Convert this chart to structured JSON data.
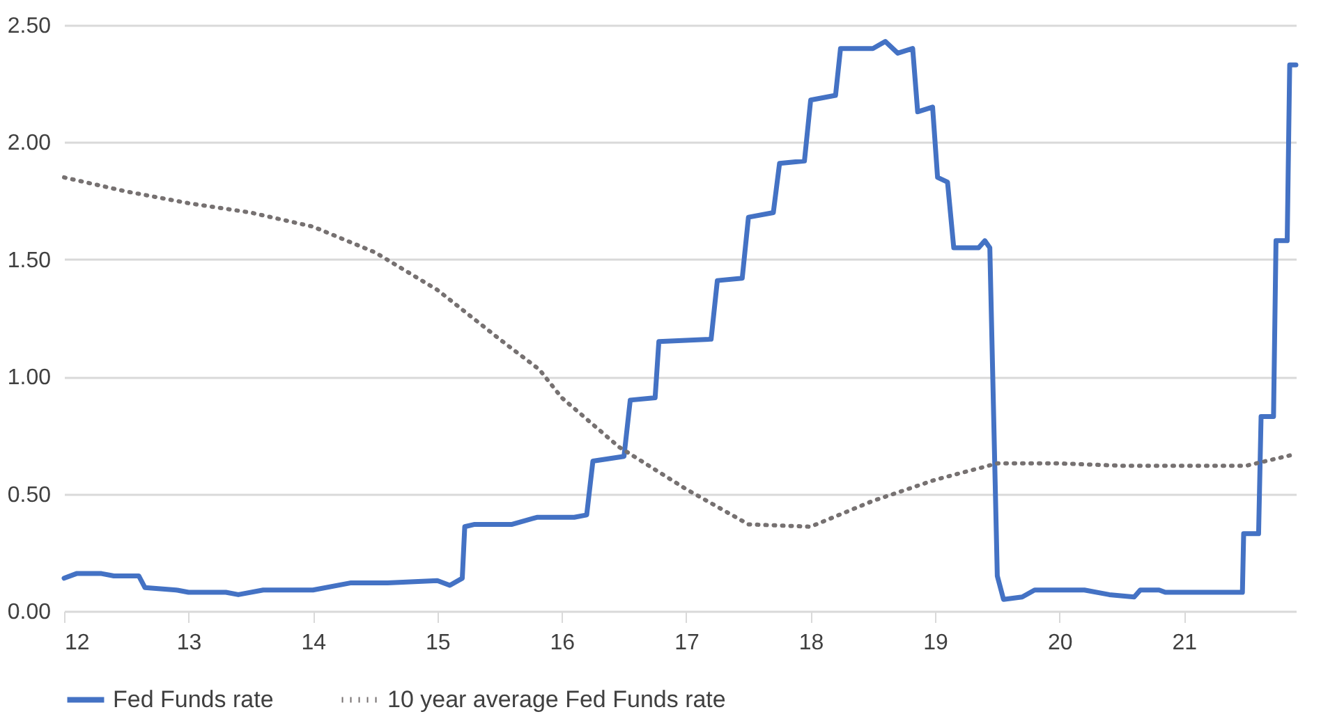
{
  "chart_data": {
    "type": "line",
    "xlim": [
      12,
      21.9
    ],
    "xticks": [
      12,
      13,
      14,
      15,
      16,
      17,
      18,
      19,
      20,
      21
    ],
    "ylim": [
      0,
      2.5
    ],
    "yticks": [
      {
        "value": 0,
        "label": "0.00"
      },
      {
        "value": 0.5,
        "label": "0.50"
      },
      {
        "value": 1,
        "label": "1.00"
      },
      {
        "value": 1.5,
        "label": "1.50"
      },
      {
        "value": 2,
        "label": "2.00"
      },
      {
        "value": 2.5,
        "label": "2.50"
      }
    ],
    "grid": "y",
    "legend": "bottom",
    "series": [
      {
        "name": "Fed Funds rate",
        "color": "#4472c4",
        "line_style": "solid",
        "x": [
          12.0,
          12.1,
          12.3,
          12.4,
          12.6,
          12.65,
          12.9,
          13.0,
          13.3,
          13.4,
          13.6,
          13.9,
          14.0,
          14.3,
          14.6,
          15.0,
          15.1,
          15.2,
          15.22,
          15.3,
          15.6,
          15.8,
          16.1,
          16.2,
          16.25,
          16.5,
          16.55,
          16.75,
          16.78,
          17.2,
          17.25,
          17.45,
          17.5,
          17.7,
          17.75,
          17.95,
          18.0,
          18.2,
          18.24,
          18.5,
          18.6,
          18.7,
          18.82,
          18.86,
          18.98,
          19.02,
          19.1,
          19.15,
          19.35,
          19.4,
          19.44,
          19.5,
          19.55,
          19.7,
          19.8,
          20.0,
          20.2,
          20.4,
          20.6,
          20.65,
          20.8,
          20.85,
          21.47,
          21.48,
          21.6,
          21.62,
          21.72,
          21.74,
          21.83,
          21.85,
          21.9
        ],
        "values": [
          0.14,
          0.16,
          0.16,
          0.15,
          0.15,
          0.1,
          0.09,
          0.08,
          0.08,
          0.07,
          0.09,
          0.09,
          0.09,
          0.12,
          0.12,
          0.13,
          0.11,
          0.14,
          0.36,
          0.37,
          0.37,
          0.4,
          0.4,
          0.41,
          0.64,
          0.66,
          0.9,
          0.91,
          1.15,
          1.16,
          1.41,
          1.42,
          1.68,
          1.7,
          1.91,
          1.92,
          2.18,
          2.2,
          2.4,
          2.4,
          2.43,
          2.38,
          2.4,
          2.13,
          2.15,
          1.85,
          1.83,
          1.55,
          1.55,
          1.58,
          1.55,
          0.15,
          0.05,
          0.06,
          0.09,
          0.09,
          0.09,
          0.07,
          0.06,
          0.09,
          0.09,
          0.08,
          0.08,
          0.33,
          0.33,
          0.83,
          0.83,
          1.58,
          1.58,
          2.33,
          2.33
        ]
      },
      {
        "name": "10 year average Fed Funds rate",
        "color": "#767171",
        "line_style": "dotted",
        "x": [
          12.0,
          12.5,
          13.0,
          13.5,
          14.0,
          14.5,
          15.0,
          15.5,
          15.82,
          16.0,
          16.46,
          17.0,
          17.5,
          18.0,
          18.5,
          19.0,
          19.5,
          20.0,
          20.5,
          21.0,
          21.5,
          21.9
        ],
        "values": [
          1.85,
          1.79,
          1.74,
          1.7,
          1.64,
          1.53,
          1.37,
          1.16,
          1.03,
          0.91,
          0.7,
          0.52,
          0.37,
          0.36,
          0.47,
          0.56,
          0.63,
          0.63,
          0.62,
          0.62,
          0.62,
          0.67
        ]
      }
    ]
  }
}
